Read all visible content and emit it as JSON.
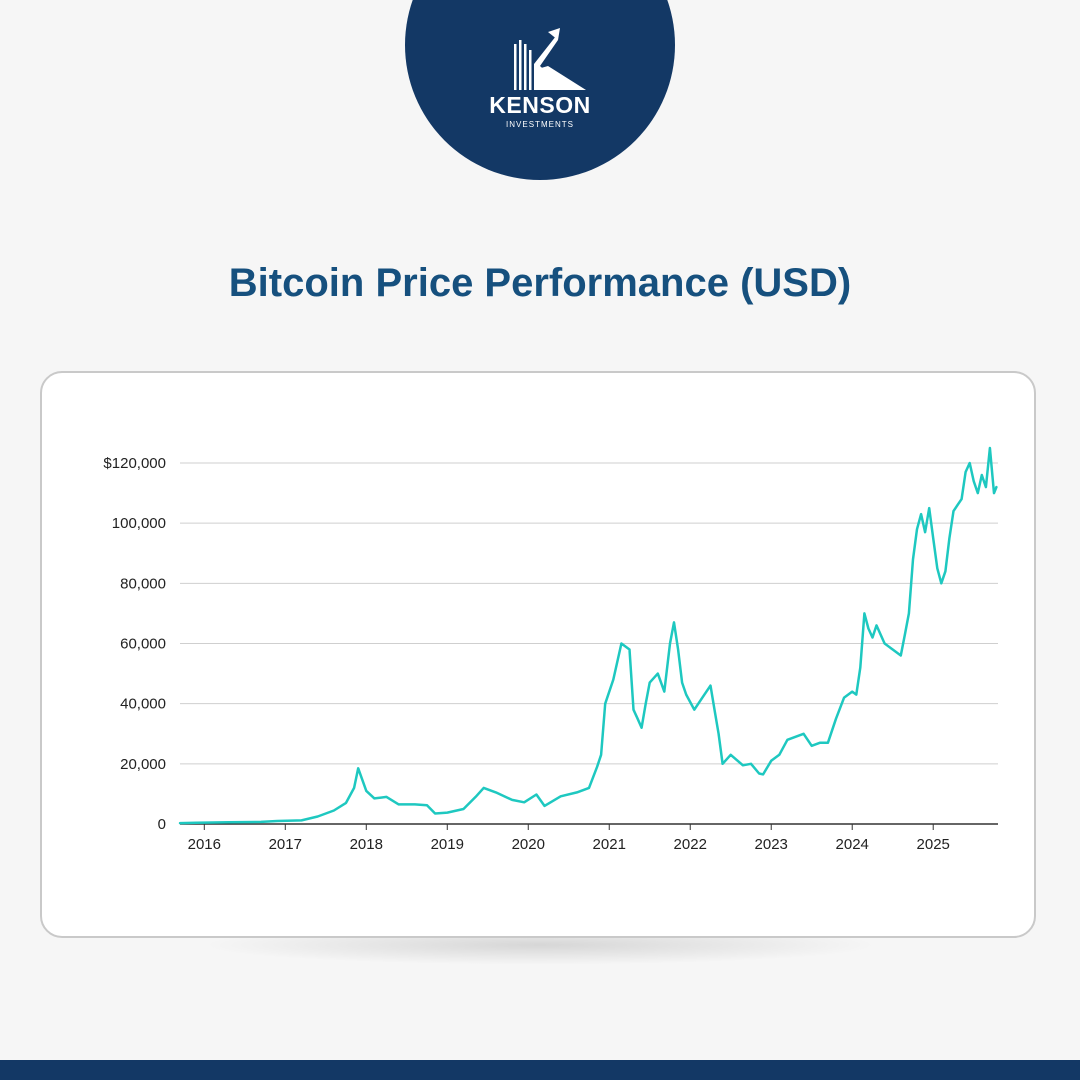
{
  "brand": {
    "name": "KENSON",
    "subtitle": "INVESTMENTS",
    "colors": {
      "navy": "#133865",
      "title": "#16507e",
      "line": "#1ec8c0"
    }
  },
  "chart_data": {
    "type": "line",
    "title": "Bitcoin Price Performance (USD)",
    "xlabel": "",
    "ylabel": "",
    "ylim": [
      0,
      120000
    ],
    "xlim": [
      2015.8,
      2025.9
    ],
    "grid": true,
    "y_ticks": [
      {
        "value": 0,
        "label": "0"
      },
      {
        "value": 20000,
        "label": "20,000"
      },
      {
        "value": 40000,
        "label": "40,000"
      },
      {
        "value": 60000,
        "label": "60,000"
      },
      {
        "value": 80000,
        "label": "80,000"
      },
      {
        "value": 100000,
        "label": "100,000"
      },
      {
        "value": 120000,
        "label": "$120,000"
      }
    ],
    "x_ticks": [
      {
        "value": 2016.1,
        "label": "2016"
      },
      {
        "value": 2017.1,
        "label": "2017"
      },
      {
        "value": 2018.1,
        "label": "2018"
      },
      {
        "value": 2019.1,
        "label": "2019"
      },
      {
        "value": 2020.1,
        "label": "2020"
      },
      {
        "value": 2021.1,
        "label": "2021"
      },
      {
        "value": 2022.1,
        "label": "2022"
      },
      {
        "value": 2023.1,
        "label": "2023"
      },
      {
        "value": 2024.1,
        "label": "2024"
      },
      {
        "value": 2025.1,
        "label": "2025"
      }
    ],
    "series": [
      {
        "name": "",
        "color": "#1ec8c0",
        "x": [
          2015.8,
          2016.0,
          2016.4,
          2016.8,
          2017.0,
          2017.3,
          2017.5,
          2017.7,
          2017.85,
          2017.95,
          2018.0,
          2018.1,
          2018.2,
          2018.35,
          2018.5,
          2018.7,
          2018.85,
          2018.95,
          2019.1,
          2019.3,
          2019.45,
          2019.55,
          2019.7,
          2019.9,
          2020.05,
          2020.2,
          2020.3,
          2020.5,
          2020.7,
          2020.85,
          2020.95,
          2021.0,
          2021.05,
          2021.15,
          2021.25,
          2021.35,
          2021.4,
          2021.45,
          2021.5,
          2021.55,
          2021.6,
          2021.7,
          2021.78,
          2021.85,
          2021.9,
          2021.95,
          2022.0,
          2022.05,
          2022.15,
          2022.25,
          2022.35,
          2022.4,
          2022.45,
          2022.5,
          2022.6,
          2022.75,
          2022.85,
          2022.95,
          2023.0,
          2023.1,
          2023.2,
          2023.3,
          2023.4,
          2023.5,
          2023.6,
          2023.7,
          2023.8,
          2023.9,
          2024.0,
          2024.1,
          2024.15,
          2024.2,
          2024.25,
          2024.3,
          2024.35,
          2024.4,
          2024.5,
          2024.6,
          2024.7,
          2024.75,
          2024.8,
          2024.85,
          2024.9,
          2024.95,
          2025.0,
          2025.05,
          2025.1,
          2025.15,
          2025.2,
          2025.25,
          2025.3,
          2025.35,
          2025.4,
          2025.45,
          2025.5,
          2025.55,
          2025.6,
          2025.65,
          2025.7,
          2025.75,
          2025.8,
          2025.85,
          2025.88
        ],
        "y": [
          300,
          400,
          600,
          700,
          1000,
          1200,
          2500,
          4500,
          7000,
          12000,
          18500,
          11000,
          8500,
          9000,
          6500,
          6500,
          6200,
          3500,
          3800,
          5000,
          9000,
          12000,
          10500,
          8000,
          7200,
          9800,
          6000,
          9200,
          10500,
          12000,
          19000,
          23000,
          40000,
          48000,
          60000,
          58000,
          38000,
          35000,
          32000,
          40000,
          47000,
          50000,
          44000,
          60000,
          67000,
          58000,
          47000,
          43000,
          38000,
          42000,
          46000,
          38000,
          30000,
          20000,
          23000,
          19500,
          20000,
          16800,
          16500,
          21000,
          23000,
          28000,
          29000,
          30000,
          26000,
          27000,
          27000,
          35000,
          42000,
          44000,
          43000,
          52000,
          70000,
          65000,
          62000,
          66000,
          60000,
          58000,
          56000,
          63000,
          70000,
          88000,
          98000,
          103000,
          97000,
          105000,
          95000,
          85000,
          80000,
          84000,
          95000,
          104000,
          106000,
          108000,
          117000,
          120000,
          114000,
          110000,
          116000,
          112000,
          125000,
          110000,
          112000
        ]
      }
    ]
  }
}
